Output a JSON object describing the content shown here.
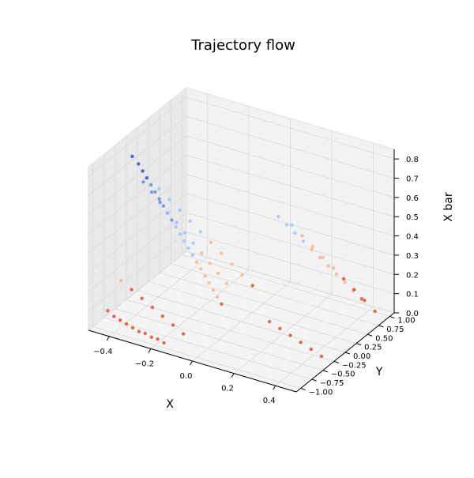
{
  "chart_data": {
    "type": "scatter",
    "projection": "3d",
    "title": "Trajectory flow",
    "xlabel": "X",
    "ylabel": "Y",
    "zlabel": "X bar",
    "xlim": [
      -0.5,
      0.5
    ],
    "ylim": [
      -1.1,
      1.1
    ],
    "zlim": [
      0.0,
      0.85
    ],
    "grid": true,
    "colormap": "coolwarm",
    "x_ticks": [
      "-0.4",
      "-0.2",
      "0.0",
      "0.2",
      "0.4"
    ],
    "y_ticks": [
      "-1.00",
      "-0.75",
      "-0.50",
      "-0.25",
      "0.00",
      "0.25",
      "0.50",
      "0.75",
      "1.00"
    ],
    "z_ticks": [
      "0.0",
      "0.1",
      "0.2",
      "0.3",
      "0.4",
      "0.5",
      "0.6",
      "0.7",
      "0.8"
    ],
    "colors": {
      "high": "#3b5bdb",
      "mid_high": "#6f8fe8",
      "mid": "#a9c4f5",
      "mid_low": "#f6b79c",
      "low": "#e05a3e",
      "pane": "#f2f2f2",
      "pane_side": "#e9e9e9",
      "grid": "#d9d9d9"
    },
    "series": [
      {
        "x": [
          -0.45,
          -0.42,
          -0.4,
          -0.38,
          -0.36,
          -0.34,
          -0.32,
          -0.3,
          -0.28,
          -0.26,
          -0.24,
          -0.22,
          -0.2,
          -0.18,
          -0.16,
          -0.14,
          -0.12,
          -0.1,
          -0.08,
          -0.06,
          -0.04,
          -0.02
        ],
        "y": [
          -0.35,
          -0.35,
          -0.35,
          -0.35,
          -0.35,
          -0.35,
          -0.35,
          -0.35,
          -0.35,
          -0.35,
          -0.35,
          -0.35,
          -0.35,
          -0.35,
          -0.35,
          -0.35,
          -0.35,
          -0.35,
          -0.35,
          -0.35,
          -0.35,
          -0.35
        ],
        "z": [
          0.78,
          0.75,
          0.72,
          0.69,
          0.66,
          0.63,
          0.6,
          0.57,
          0.54,
          0.51,
          0.48,
          0.45,
          0.42,
          0.39,
          0.36,
          0.33,
          0.3,
          0.27,
          0.24,
          0.21,
          0.18,
          0.15
        ]
      },
      {
        "x": [
          -0.45,
          -0.41,
          -0.37,
          -0.33,
          -0.29,
          -0.25,
          -0.21,
          -0.17,
          -0.13,
          -0.09,
          -0.05
        ],
        "y": [
          -0.1,
          -0.1,
          -0.1,
          -0.1,
          -0.1,
          -0.1,
          -0.1,
          -0.1,
          -0.1,
          -0.1,
          -0.1
        ],
        "z": [
          0.6,
          0.56,
          0.52,
          0.48,
          0.44,
          0.4,
          0.36,
          0.32,
          0.28,
          0.24,
          0.2
        ]
      },
      {
        "x": [
          -0.45,
          -0.4,
          -0.35,
          -0.3,
          -0.25,
          -0.2,
          -0.15,
          -0.1,
          -0.05,
          0.0
        ],
        "y": [
          0.25,
          0.25,
          0.25,
          0.25,
          0.25,
          0.25,
          0.25,
          0.25,
          0.25,
          0.25
        ],
        "z": [
          0.5,
          0.46,
          0.42,
          0.38,
          0.34,
          0.3,
          0.26,
          0.22,
          0.18,
          0.14
        ]
      },
      {
        "x": [
          0.05,
          0.09,
          0.13,
          0.17,
          0.21,
          0.25,
          0.29,
          0.33,
          0.37,
          0.41,
          0.45
        ],
        "y": [
          0.6,
          0.6,
          0.6,
          0.6,
          0.6,
          0.6,
          0.6,
          0.6,
          0.6,
          0.6,
          0.6
        ],
        "z": [
          0.45,
          0.42,
          0.39,
          0.36,
          0.33,
          0.3,
          0.27,
          0.24,
          0.21,
          0.18,
          0.15
        ]
      },
      {
        "x": [
          0.05,
          0.1,
          0.15,
          0.2,
          0.25,
          0.3,
          0.35,
          0.4,
          0.45
        ],
        "y": [
          0.9,
          0.9,
          0.9,
          0.9,
          0.9,
          0.9,
          0.9,
          0.9,
          0.9
        ],
        "z": [
          0.35,
          0.31,
          0.27,
          0.23,
          0.19,
          0.15,
          0.11,
          0.07,
          0.03
        ]
      },
      {
        "x": [
          -0.45,
          -0.4,
          -0.35,
          -0.3,
          -0.25,
          -0.2,
          -0.15
        ],
        "y": [
          -0.6,
          -0.6,
          -0.6,
          -0.6,
          -0.6,
          -0.6,
          -0.6
        ],
        "z": [
          0.18,
          0.15,
          0.12,
          0.09,
          0.06,
          0.03,
          0.0
        ]
      },
      {
        "x": [
          -0.45,
          -0.42,
          -0.39,
          -0.36,
          -0.33,
          -0.3,
          -0.27,
          -0.24,
          -0.21,
          -0.18
        ],
        "y": [
          -0.9,
          -0.9,
          -0.9,
          -0.9,
          -0.9,
          -0.9,
          -0.9,
          -0.9,
          -0.9,
          -0.9
        ],
        "z": [
          0.08,
          0.06,
          0.05,
          0.04,
          0.03,
          0.02,
          0.02,
          0.01,
          0.01,
          0.0
        ]
      },
      {
        "x": [
          0.2,
          0.25,
          0.3,
          0.35,
          0.4,
          0.45
        ],
        "y": [
          -0.3,
          -0.3,
          -0.3,
          -0.3,
          -0.3,
          -0.3
        ],
        "z": [
          0.12,
          0.1,
          0.08,
          0.06,
          0.04,
          0.02
        ]
      }
    ]
  }
}
